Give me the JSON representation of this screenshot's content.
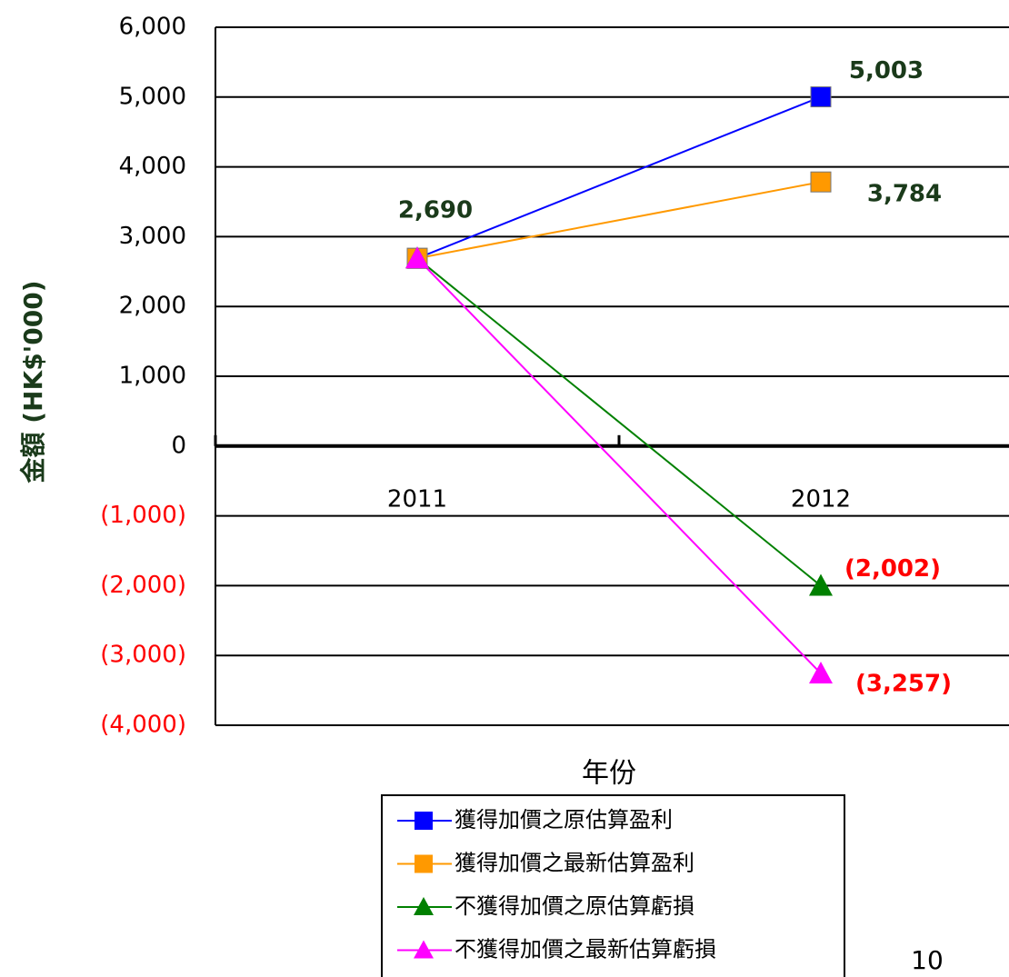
{
  "chart_data": {
    "type": "line",
    "x_label": "年份",
    "y_label": "金額 (HK$'000)",
    "categories": [
      "2011",
      "2012"
    ],
    "series": [
      {
        "name": "獲得加價之原估算盈利",
        "color": "#0000ff",
        "marker": "square",
        "values": [
          2690,
          5003
        ],
        "value_labels": [
          "2,690",
          "5,003"
        ]
      },
      {
        "name": "獲得加價之最新估算盈利",
        "color": "#ff9900",
        "marker": "square",
        "values": [
          2690,
          3784
        ],
        "value_labels": [
          null,
          "3,784"
        ]
      },
      {
        "name": "不獲得加價之原估算虧損",
        "color": "#008000",
        "marker": "triangle",
        "values": [
          2690,
          -2002
        ],
        "value_labels": [
          null,
          "(2,002)"
        ]
      },
      {
        "name": "不獲得加價之最新估算虧損",
        "color": "#ff00ff",
        "marker": "triangle",
        "values": [
          2690,
          -3257
        ],
        "value_labels": [
          null,
          "(3,257)"
        ]
      }
    ],
    "ylim": [
      -4000,
      6000
    ],
    "yticks": [
      {
        "value": -4000,
        "label": "(4,000)"
      },
      {
        "value": -3000,
        "label": "(3,000)"
      },
      {
        "value": -2000,
        "label": "(2,000)"
      },
      {
        "value": -1000,
        "label": "(1,000)"
      },
      0,
      {
        "value": 1000,
        "label": "1,000"
      },
      {
        "value": 2000,
        "label": "2,000"
      },
      {
        "value": 3000,
        "label": "3,000"
      },
      {
        "value": 4000,
        "label": "4,000"
      },
      {
        "value": 5000,
        "label": "5,000"
      },
      {
        "value": 6000,
        "label": "6,000"
      }
    ],
    "grid": true,
    "negative_color": "#ff0000",
    "label_color": "#1a3a1a",
    "legend": "bottom",
    "page_number": "10"
  }
}
